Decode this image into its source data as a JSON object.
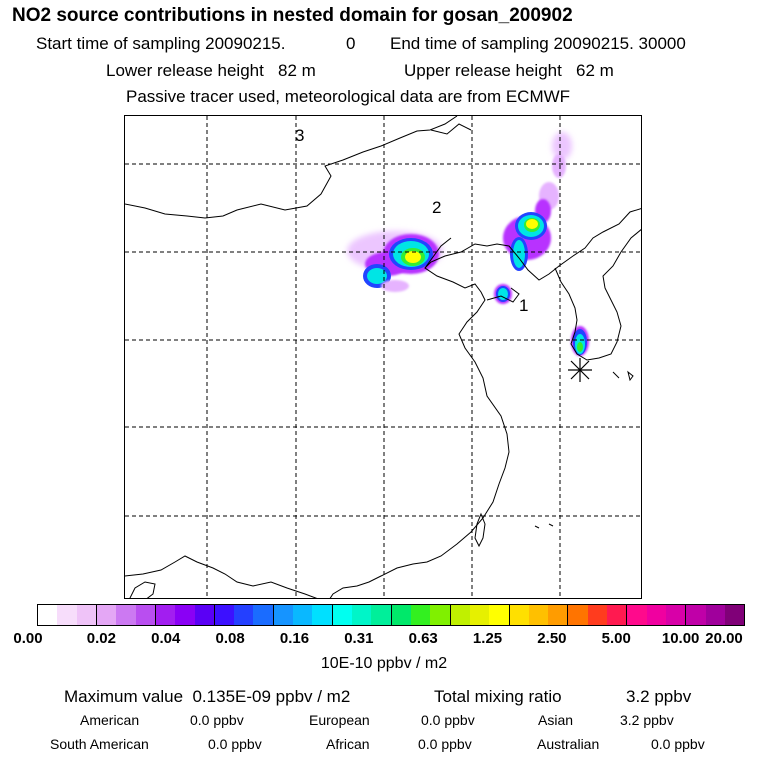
{
  "header": {
    "title": "NO2 source contributions in nested domain for gosan_200902",
    "start_label": "Start time of sampling 20090215.",
    "start_hour": "0",
    "end_label": "End time of sampling 20090215. 30000",
    "lower_release": "Lower release height   82 m",
    "upper_release": "Upper release height   62 m",
    "tracer_note": "Passive tracer used, meteorological data are from ECMWF"
  },
  "map": {
    "region_labels": [
      {
        "id": "region-1",
        "text": "1"
      },
      {
        "id": "region-2",
        "text": "2"
      },
      {
        "id": "region-3",
        "text": "3"
      }
    ],
    "receptor_marker": "asterisk-icon",
    "plume_colors": {
      "light_purple": "#e6b3ff",
      "purple": "#b833ff",
      "blue": "#2244ff",
      "cyan": "#00e5e5",
      "green": "#33ee33",
      "yellow": "#ffff00"
    }
  },
  "colorbar": {
    "colors": [
      "#ffffff",
      "#f7ddfb",
      "#efc3f8",
      "#e4a7f5",
      "#cc79f2",
      "#b94ef0",
      "#a21ef0",
      "#8a00f5",
      "#5a00f5",
      "#3c10ff",
      "#2440ff",
      "#1a6cff",
      "#1694ff",
      "#0ab8ff",
      "#00e0ff",
      "#00fff0",
      "#00f5c8",
      "#00ef9a",
      "#00e86a",
      "#33f020",
      "#80f000",
      "#c0f000",
      "#e6f000",
      "#ffff00",
      "#ffe000",
      "#ffc000",
      "#ff9c00",
      "#ff7400",
      "#ff3c1e",
      "#ff1a50",
      "#ff0a8c",
      "#f000a0",
      "#d800a8",
      "#c000a8",
      "#a0009c",
      "#800078"
    ],
    "ticks": [
      "0.00",
      "0.02",
      "0.04",
      "0.08",
      "0.16",
      "0.31",
      "0.63",
      "1.25",
      "2.50",
      "5.00",
      "10.00",
      "20.00"
    ],
    "units": "10E-10 ppbv / m2"
  },
  "summary": {
    "max_label": "Maximum value  0.135E-09 ppbv / m2",
    "total_label": "Total mixing ratio",
    "total_value": "3.2 ppbv",
    "sources": [
      {
        "name": "American",
        "value": "0.0 ppbv"
      },
      {
        "name": "European",
        "value": "0.0 ppbv"
      },
      {
        "name": "Asian",
        "value": "3.2 ppbv"
      },
      {
        "name": "South American",
        "value": "0.0 ppbv"
      },
      {
        "name": "African",
        "value": "0.0 ppbv"
      },
      {
        "name": "Australian",
        "value": "0.0 ppbv"
      }
    ]
  }
}
